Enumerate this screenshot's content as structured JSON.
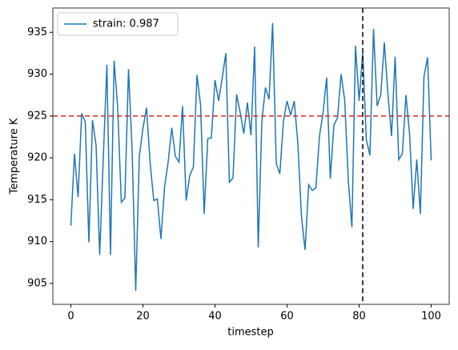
{
  "chart_data": {
    "type": "line",
    "xlabel": "timestep",
    "ylabel": "Temperature K",
    "x": [
      0,
      1,
      2,
      3,
      4,
      5,
      6,
      7,
      8,
      9,
      10,
      11,
      12,
      13,
      14,
      15,
      16,
      17,
      18,
      19,
      20,
      21,
      22,
      23,
      24,
      25,
      26,
      27,
      28,
      29,
      30,
      31,
      32,
      33,
      34,
      35,
      36,
      37,
      38,
      39,
      40,
      41,
      42,
      43,
      44,
      45,
      46,
      47,
      48,
      49,
      50,
      51,
      52,
      53,
      54,
      55,
      56,
      57,
      58,
      59,
      60,
      61,
      62,
      63,
      64,
      65,
      66,
      67,
      68,
      69,
      70,
      71,
      72,
      73,
      74,
      75,
      76,
      77,
      78,
      79,
      80,
      81,
      82,
      83,
      84,
      85,
      86,
      87,
      88,
      89,
      90,
      91,
      92,
      93,
      94,
      95,
      96,
      97,
      98,
      99,
      100
    ],
    "series": [
      {
        "name": "strain: 0.987",
        "color": "#1f77b4",
        "values": [
          911.9,
          920.5,
          915.3,
          925.3,
          924.3,
          909.9,
          924.5,
          921.5,
          908.4,
          920,
          931.1,
          908.4,
          931.6,
          926,
          914.7,
          915.2,
          930.6,
          921,
          904.1,
          920.2,
          923.5,
          926,
          919.4,
          914.9,
          915.1,
          910.3,
          916.5,
          919.5,
          923.6,
          920.2,
          919.5,
          926.2,
          914.9,
          917.9,
          918.9,
          929.9,
          926.3,
          913.3,
          922.3,
          922.4,
          929.3,
          926.8,
          929.5,
          932.5,
          917.1,
          917.6,
          927.6,
          925.4,
          922.9,
          926.6,
          922.7,
          933.3,
          909.3,
          924.3,
          928.4,
          927,
          936.1,
          919.3,
          918.1,
          924.4,
          926.8,
          925.1,
          926.8,
          921.7,
          913,
          909,
          916.8,
          916.1,
          916.4,
          922.6,
          925.4,
          929.6,
          917.5,
          923.9,
          924.8,
          930,
          926.9,
          917.3,
          911.7,
          933.4,
          926.8,
          932.6,
          922.2,
          920.3,
          935.4,
          926.2,
          927.5,
          933.8,
          927.6,
          922.6,
          932.1,
          919.8,
          920.5,
          927.5,
          922.9,
          913.9,
          919.8,
          913.3,
          929.7,
          932,
          919.7
        ]
      }
    ],
    "hlines": [
      {
        "value": 925,
        "color": "#d62728"
      }
    ],
    "vlines": [
      {
        "value": 81,
        "color": "#000000"
      }
    ],
    "xlim": [
      -5,
      105
    ],
    "ylim": [
      902.5,
      937.9
    ],
    "xticks": [
      0,
      20,
      40,
      60,
      80,
      100
    ],
    "yticks": [
      905,
      910,
      915,
      920,
      925,
      930,
      935
    ],
    "grid": false,
    "legend": "upper left"
  }
}
